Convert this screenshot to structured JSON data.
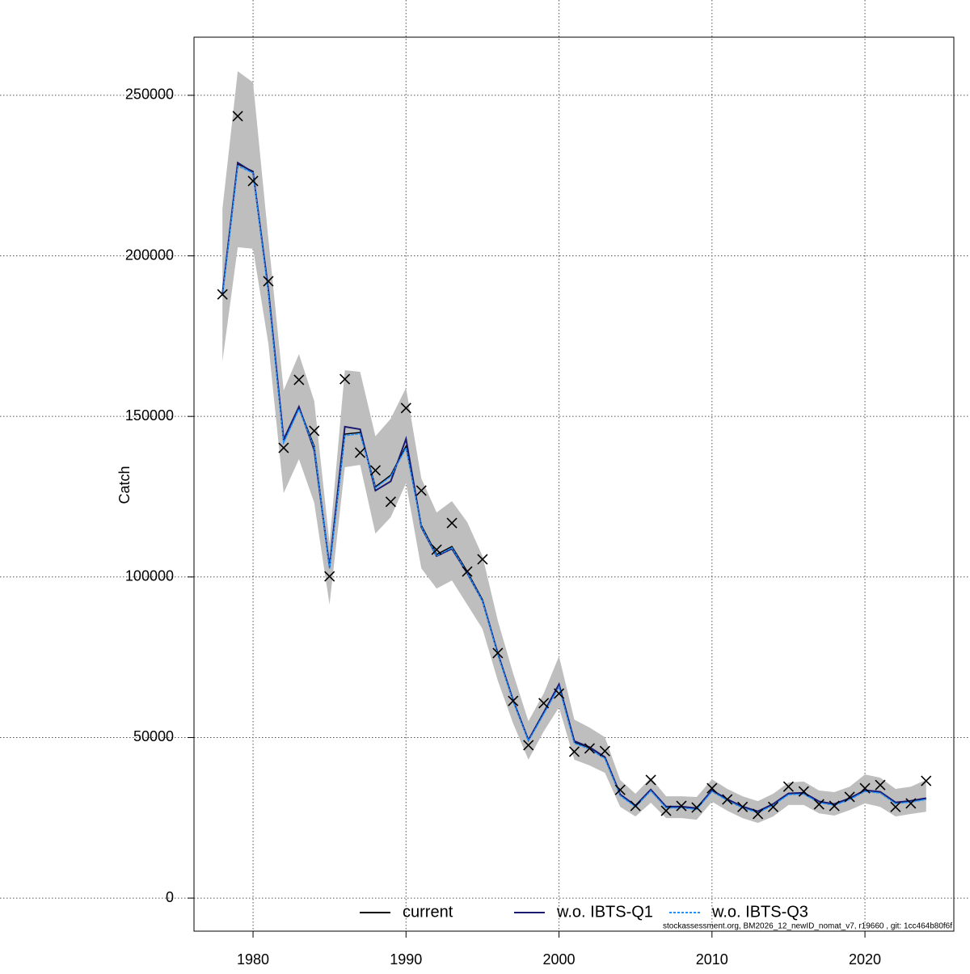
{
  "chart_data": {
    "type": "line",
    "y_label": "Catch",
    "footnote": "stockassessment.org, BM2026_12_newID_nomat_v7, r19660 , git: 1cc464b80f6f",
    "x": [
      1978,
      1979,
      1980,
      1981,
      1982,
      1983,
      1984,
      1985,
      1986,
      1987,
      1988,
      1989,
      1990,
      1991,
      1992,
      1993,
      1994,
      1995,
      1996,
      1997,
      1998,
      1999,
      2000,
      2001,
      2002,
      2003,
      2004,
      2005,
      2006,
      2007,
      2008,
      2009,
      2010,
      2011,
      2012,
      2013,
      2014,
      2015,
      2016,
      2017,
      2018,
      2019,
      2020,
      2021,
      2022,
      2023,
      2024
    ],
    "series": [
      {
        "name": "current",
        "color": "#000000",
        "dash": false,
        "values": [
          188000,
          228600,
          226300,
          189100,
          142200,
          152800,
          140700,
          103000,
          144500,
          145000,
          128100,
          131700,
          140700,
          116100,
          107000,
          109500,
          101700,
          92900,
          76300,
          61700,
          49300,
          57700,
          66200,
          48600,
          46800,
          43800,
          32200,
          28700,
          33700,
          28400,
          28400,
          27900,
          33500,
          30700,
          28400,
          26900,
          29200,
          32500,
          32700,
          30000,
          29200,
          31000,
          33500,
          33000,
          29700,
          30200,
          31000
        ]
      },
      {
        "name": "w.o. IBTS-Q1",
        "color": "#191970",
        "dash": false,
        "values": [
          188300,
          229000,
          226000,
          189500,
          142800,
          153000,
          139500,
          103200,
          146800,
          146000,
          126900,
          129800,
          143000,
          115500,
          106500,
          108800,
          101200,
          92600,
          76200,
          61600,
          49200,
          57800,
          66600,
          48900,
          47000,
          43900,
          32300,
          28800,
          33800,
          28500,
          28500,
          28000,
          33600,
          30800,
          28500,
          27000,
          29300,
          32600,
          32800,
          30100,
          29300,
          31100,
          33600,
          33100,
          29800,
          30300,
          31100
        ]
      },
      {
        "name": "w.o. IBTS-Q3",
        "color": "#1e90ff",
        "dash": true,
        "values": [
          187500,
          228000,
          225800,
          188500,
          141800,
          152300,
          140300,
          102600,
          144000,
          144600,
          127700,
          131300,
          140200,
          115700,
          106600,
          109100,
          101300,
          92500,
          75900,
          61300,
          48900,
          57300,
          65800,
          48200,
          46400,
          43400,
          31900,
          28400,
          33400,
          28100,
          28100,
          27600,
          33200,
          30400,
          28100,
          26600,
          28900,
          32200,
          32400,
          29700,
          28900,
          30700,
          33200,
          32700,
          29400,
          29900,
          30700
        ]
      }
    ],
    "observed": {
      "color": "#000000",
      "values": [
        188000,
        243500,
        223300,
        192100,
        140200,
        161400,
        145500,
        100200,
        161600,
        138700,
        133200,
        123400,
        152600,
        126900,
        108500,
        116800,
        101700,
        105500,
        76300,
        61400,
        47600,
        60700,
        63700,
        45600,
        46600,
        45800,
        33700,
        28700,
        36800,
        27200,
        28700,
        28200,
        34200,
        30700,
        28400,
        26200,
        28400,
        34700,
        33200,
        29200,
        28700,
        31500,
        34200,
        35200,
        28400,
        29500,
        36500
      ]
    },
    "band": {
      "color": "#bebebe",
      "upper": [
        214700,
        257500,
        254000,
        205400,
        158100,
        169400,
        154800,
        110500,
        164400,
        163900,
        143800,
        149300,
        158900,
        130700,
        120100,
        123600,
        117100,
        106500,
        86400,
        70000,
        55100,
        63700,
        75300,
        55600,
        53100,
        50100,
        36800,
        32500,
        37500,
        31700,
        31700,
        31500,
        37000,
        34000,
        31700,
        30200,
        32500,
        36000,
        36300,
        33500,
        33000,
        34700,
        38500,
        37500,
        34000,
        34700,
        36800
      ],
      "lower": [
        167200,
        202700,
        202200,
        172700,
        126100,
        136700,
        123100,
        91400,
        134200,
        134900,
        113500,
        118600,
        129200,
        102700,
        96400,
        98900,
        91400,
        83800,
        67700,
        54400,
        43100,
        51900,
        59400,
        43100,
        41300,
        39000,
        28400,
        25400,
        29700,
        24900,
        24900,
        24400,
        30000,
        27200,
        24900,
        23400,
        25400,
        29000,
        29000,
        26400,
        25700,
        27400,
        29500,
        28400,
        25400,
        26200,
        26900
      ]
    },
    "xlim": [
      1976.14,
      2025.81
    ],
    "ylim": [
      -10300,
      268100
    ],
    "xticks": [
      1980,
      1990,
      2000,
      2010,
      2020
    ],
    "yticks": [
      0,
      50000,
      100000,
      150000,
      200000,
      250000
    ],
    "grid": true
  }
}
